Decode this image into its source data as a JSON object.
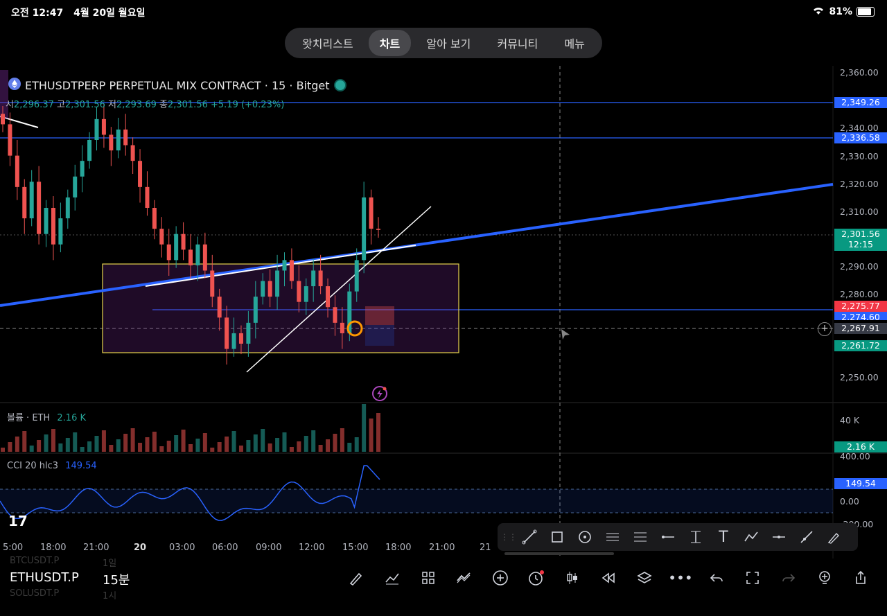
{
  "status_bar": {
    "time": "오전 12:47",
    "date": "4월 20일 월요일",
    "battery": "81%"
  },
  "nav_tabs": [
    {
      "label": "왓치리스트",
      "active": false
    },
    {
      "label": "차트",
      "active": true
    },
    {
      "label": "알아 보기",
      "active": false
    },
    {
      "label": "커뮤니티",
      "active": false
    },
    {
      "label": "메뉴",
      "active": false
    }
  ],
  "legend": {
    "title": "ETHUSDTPERP PERPETUAL MIX CONTRACT · 15 · Bitget",
    "open_label": "시",
    "open": "2,296.37",
    "high_label": "고",
    "high": "2,301.56",
    "low_label": "저",
    "low": "2,293.69",
    "close_label": "종",
    "close": "2,301.56",
    "change": "+5.19 (+0.23%)"
  },
  "price_axis": [
    "2,360.00",
    "2,340.00",
    "2,330.00",
    "2,320.00",
    "2,310.00",
    "2,290.00",
    "2,280.00",
    "2,250.00"
  ],
  "price_labels": {
    "l1": "2,349.26",
    "l2": "2,336.58",
    "last_price": "2,301.56",
    "countdown": "12:15",
    "red_level": "2,275.77",
    "blue_level": "2,274.60",
    "crosshair": "2,267.91",
    "green_level": "2,261.72"
  },
  "time_axis": [
    "5:00",
    "18:00",
    "21:00",
    "20",
    "03:00",
    "06:00",
    "09:00",
    "12:00",
    "15:00",
    "18:00",
    "21:00",
    "21"
  ],
  "volume": {
    "label": "볼륨 · ETH",
    "value": "2.16 K",
    "axis": "40 K",
    "badge": "2.16 K"
  },
  "cci": {
    "label": "CCI 20 hlc3",
    "value": "149.54",
    "axis_top": "400.00",
    "axis_mid": "0.00",
    "axis_bottom": "-200.00",
    "badge": "149.54"
  },
  "drawing_tools": [
    "trend-line",
    "rectangle",
    "circle",
    "fib-retracement",
    "fib-s",
    "horizontal-ray",
    "long-position",
    "text",
    "path",
    "horizontal-line",
    "brush",
    "pen"
  ],
  "bottom": {
    "symbol": "ETHUSDT.P",
    "interval": "15분",
    "ghost_symbols": [
      "BTCUSDT.P",
      "SOLUSDT.P"
    ],
    "ghost_intervals": [
      "1일",
      "1시"
    ]
  },
  "colors": {
    "up": "#26a69a",
    "down": "#ef5350",
    "blue_line": "#2962ff",
    "box": "#e8d44d"
  },
  "chart_data": {
    "type": "candlestick",
    "title": "ETHUSDTPERP PERPETUAL MIX CONTRACT · 15 · Bitget",
    "ylim": [
      2245,
      2362
    ],
    "closes": [
      2342,
      2330,
      2318,
      2306,
      2320,
      2300,
      2310,
      2296,
      2306,
      2314,
      2322,
      2328,
      2336,
      2344,
      2338,
      2332,
      2340,
      2334,
      2328,
      2318,
      2310,
      2302,
      2296,
      2290,
      2300,
      2294,
      2288,
      2296,
      2286,
      2276,
      2268,
      2256,
      2262,
      2258,
      2266,
      2276,
      2282,
      2276,
      2286,
      2290,
      2282,
      2274,
      2280,
      2286,
      2280,
      2272,
      2266,
      2262,
      2278,
      2290,
      2314,
      2302,
      2301.56
    ]
  }
}
